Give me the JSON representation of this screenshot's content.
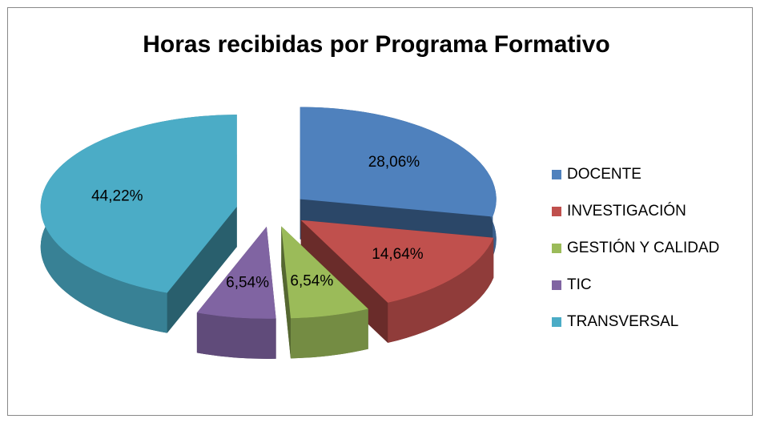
{
  "chart_data": {
    "type": "pie",
    "title": "Horas recibidas por Programa Formativo",
    "categories": [
      "DOCENTE",
      "INVESTIGACIÓN",
      "GESTIÓN Y CALIDAD",
      "TIC",
      "TRANSVERSAL"
    ],
    "values": [
      28.06,
      14.64,
      6.54,
      6.54,
      44.22
    ],
    "value_labels": [
      "28,06%",
      "14,64%",
      "6,54%",
      "6,54%",
      "44,22%"
    ],
    "colors": [
      "#4f81bd",
      "#c0504d",
      "#9bbb59",
      "#8064a2",
      "#4bacc6"
    ],
    "legend": "right"
  }
}
